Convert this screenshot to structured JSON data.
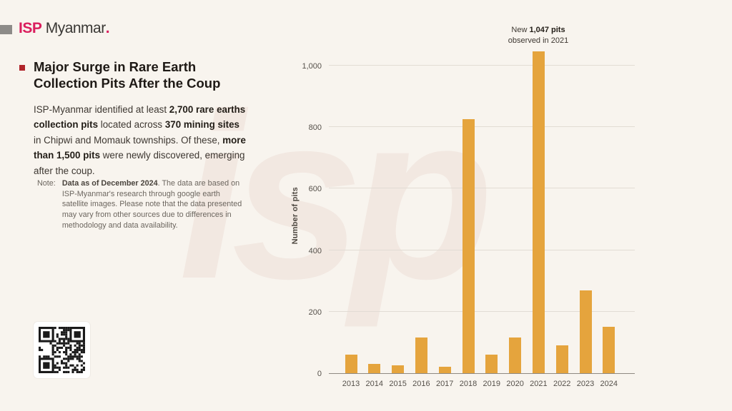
{
  "logo": {
    "isp": "ISP",
    "myanmar": "Myanmar",
    "dot": ".",
    "isp_color": "#da1d5d",
    "block_color": "#8d8b88"
  },
  "title": {
    "line1": "Major Surge in Rare Earth",
    "line2": "Collection Pits After the Coup",
    "bullet_color": "#b0242a"
  },
  "intro_segments": [
    {
      "t": "ISP-Myanmar identified at least ",
      "b": false
    },
    {
      "t": "2,700 rare earths collection pits",
      "b": true
    },
    {
      "t": " located across ",
      "b": false
    },
    {
      "t": "370 mining sites",
      "b": true
    },
    {
      "t": " in Chipwi and Momauk townships. Of these, ",
      "b": false
    },
    {
      "t": "more than 1,500 pits",
      "b": true
    },
    {
      "t": " were newly discovered, emerging after the coup.",
      "b": false
    }
  ],
  "note": {
    "label": "Note:",
    "segments": [
      {
        "t": "Data as of December 2024",
        "b": true
      },
      {
        "t": ". The data are based on ISP-Myanmar's research through google earth satellite images. Please note that the data presented may vary from other sources due to differences in methodology and data availability.",
        "b": false
      }
    ]
  },
  "watermark_text": "isp",
  "chart_data": {
    "type": "bar",
    "title": "",
    "xlabel": "",
    "ylabel": "Number of pits",
    "categories": [
      "2013",
      "2014",
      "2015",
      "2016",
      "2017",
      "2018",
      "2019",
      "2020",
      "2021",
      "2022",
      "2023",
      "2024"
    ],
    "values": [
      60,
      30,
      25,
      115,
      20,
      825,
      60,
      115,
      1047,
      90,
      270,
      150
    ],
    "ylim": [
      0,
      1100
    ],
    "yticks": [
      {
        "value": 0,
        "label": "0"
      },
      {
        "value": 200,
        "label": "200"
      },
      {
        "value": 400,
        "label": "400"
      },
      {
        "value": 600,
        "label": "600"
      },
      {
        "value": 800,
        "label": "800"
      },
      {
        "value": 1000,
        "label": "1,000"
      }
    ],
    "bar_color": "#e5a43d",
    "grid": "on",
    "legend": "none",
    "annotation": {
      "prefix": "New ",
      "bold": "1,047 pits",
      "line2": "observed in 2021",
      "target_year": "2021"
    }
  }
}
